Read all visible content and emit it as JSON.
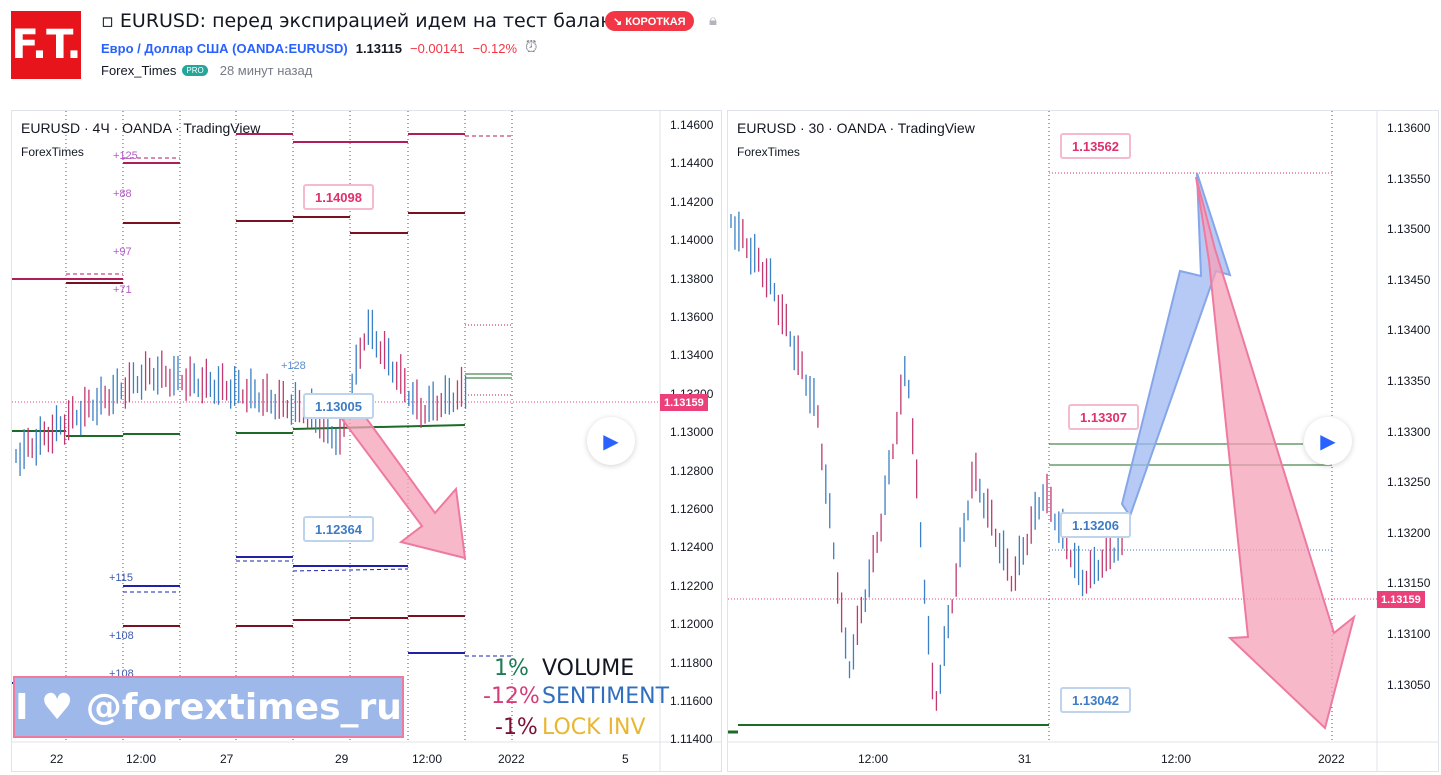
{
  "header": {
    "logo_text": "F.T.",
    "title": "▫ EURUSD: перед экспирацией идем на тест баланса.",
    "badge": "↘ КОРОТКАЯ",
    "lock_icon": "lock-icon",
    "symbol_name": "Евро / Доллар США (OANDA:EURUSD)",
    "last_price": "1.13115",
    "change": "−0.00141",
    "change_pct": "−0.12%",
    "alarm_icon": "alarm-clock-icon",
    "author": "Forex_Times",
    "pro_badge": "PRO",
    "time_ago": "28 минут назад"
  },
  "left_chart": {
    "title": "EURUSD · 4Ч · OANDA · TradingView",
    "subtitle": "ForexTimes",
    "y_ticks": [
      "1.14600",
      "1.14400",
      "1.14200",
      "1.14000",
      "1.13800",
      "1.13600",
      "1.13400",
      "1.13200",
      "1.13000",
      "1.12800",
      "1.12600",
      "1.12400",
      "1.12200",
      "1.12000",
      "1.11800",
      "1.11600",
      "1.11400"
    ],
    "x_ticks": [
      "22",
      "12:00",
      "27",
      "29",
      "12:00",
      "2022",
      "5"
    ],
    "current_price": "1.13159",
    "callouts": [
      {
        "text": "1.14098",
        "color": "#e0306a"
      },
      {
        "text": "1.13005",
        "color": "#3d7bc7"
      },
      {
        "text": "1.12364",
        "color": "#3d7bc7"
      }
    ],
    "level_labels": [
      {
        "text": "+125",
        "color": "#b45cc6"
      },
      {
        "text": "+88",
        "color": "#b45cc6"
      },
      {
        "text": "+97",
        "color": "#b45cc6"
      },
      {
        "text": "+71",
        "color": "#b45cc6"
      },
      {
        "text": "+128",
        "color": "#5a8ccc"
      },
      {
        "text": "+115",
        "color": "#3d5bb0"
      },
      {
        "text": "+108",
        "color": "#3d5bb0"
      },
      {
        "text": "+108",
        "color": "#3d5bb0"
      }
    ],
    "promo_text": "I ♥ @forextimes_ru",
    "metrics": [
      {
        "value": "1%",
        "label": "VOLUME",
        "value_color": "#1e7a57",
        "label_color": "#131722"
      },
      {
        "value": "-12%",
        "label": "SENTIMENT",
        "value_color": "#d43d78",
        "label_color": "#2f6fbf"
      },
      {
        "value": "-1%",
        "label": "LOCK INV",
        "value_color": "#7a1034",
        "label_color": "#e8b732"
      }
    ]
  },
  "right_chart": {
    "title": "EURUSD · 30 · OANDA · TradingView",
    "subtitle": "ForexTimes",
    "y_ticks": [
      "1.13600",
      "1.13550",
      "1.13500",
      "1.13450",
      "1.13400",
      "1.13350",
      "1.13300",
      "1.13250",
      "1.13200",
      "1.13150",
      "1.13100",
      "1.13050"
    ],
    "x_ticks": [
      "12:00",
      "31",
      "12:00",
      "2022"
    ],
    "current_price": "1.13159",
    "callouts": [
      {
        "text": "1.13562",
        "color": "#e0306a"
      },
      {
        "text": "1.13307",
        "color": "#e0306a"
      },
      {
        "text": "1.13206",
        "color": "#3d7bc7"
      },
      {
        "text": "1.13042",
        "color": "#3d7bc7"
      }
    ]
  },
  "colors": {
    "up_candle": "#3b7fc4",
    "down_candle": "#c2386f",
    "price_line": "#ec407a",
    "accent": "#2962ff"
  }
}
